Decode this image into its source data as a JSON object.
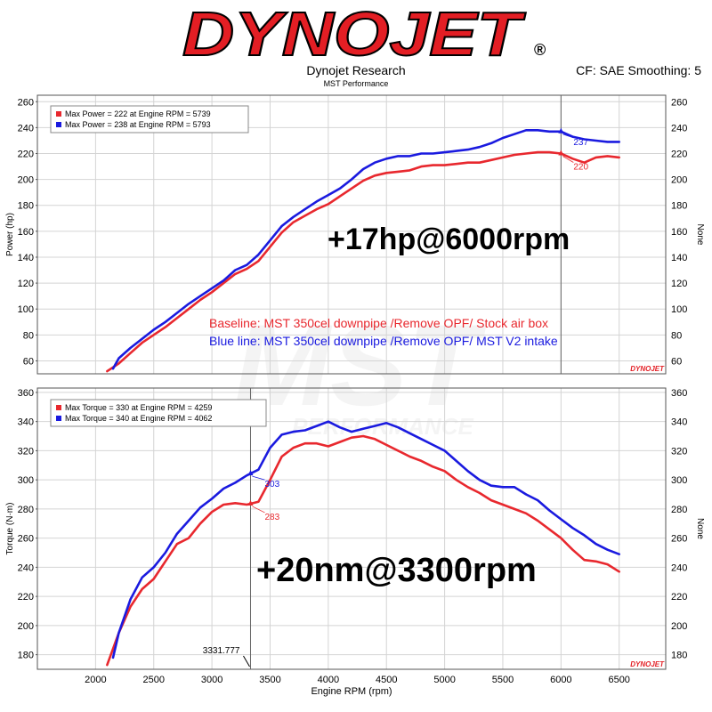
{
  "header": {
    "logo_text": "DYNOJET",
    "logo_mark": "®",
    "company": "Dynojet Research",
    "subtitle": "MST Performance",
    "correction": "CF: SAE Smoothing: 5"
  },
  "watermark": {
    "text": "MST",
    "subtext": "PERFORMANCE"
  },
  "colors": {
    "baseline": "#e8282e",
    "modified": "#1a1adf",
    "grid": "#d0d0d0",
    "logo_red": "#e31e24"
  },
  "chart_data": [
    {
      "type": "line",
      "id": "power",
      "ylabel": "Power (hp)",
      "right_label": "None",
      "xlim": [
        1500,
        6900
      ],
      "ylim": [
        50,
        265
      ],
      "yticks": [
        60,
        80,
        100,
        120,
        140,
        160,
        180,
        200,
        220,
        240,
        260
      ],
      "legend": [
        "Max Power = 222 at Engine RPM = 5739",
        "Max Power = 238 at Engine RPM = 5793"
      ],
      "cursor_rpm": 6000,
      "annotation": "+17hp@6000rpm",
      "notes": [
        "Baseline: MST 350cel downpipe /Remove OPF/ Stock air box",
        "Blue line: MST 350cel downpipe /Remove OPF/ MST V2 intake"
      ],
      "brand_mark": "DYNOJET",
      "series": [
        {
          "legend_index": 0,
          "color": "#e8282e",
          "cursor_label": "220",
          "x": [
            2100,
            2200,
            2300,
            2400,
            2500,
            2600,
            2700,
            2800,
            2900,
            3000,
            3100,
            3200,
            3300,
            3400,
            3500,
            3600,
            3700,
            3800,
            3900,
            4000,
            4100,
            4200,
            4300,
            4400,
            4500,
            4600,
            4700,
            4800,
            4900,
            5000,
            5100,
            5200,
            5300,
            5400,
            5500,
            5600,
            5700,
            5800,
            5900,
            6000,
            6100,
            6200,
            6300,
            6400,
            6500
          ],
          "y": [
            52,
            58,
            66,
            74,
            80,
            86,
            93,
            100,
            107,
            113,
            120,
            127,
            131,
            137,
            148,
            159,
            167,
            172,
            177,
            181,
            187,
            193,
            199,
            203,
            205,
            206,
            207,
            210,
            211,
            211,
            212,
            213,
            213,
            215,
            217,
            219,
            220,
            221,
            221,
            220,
            216,
            213,
            217,
            218,
            217
          ]
        },
        {
          "legend_index": 1,
          "color": "#1a1adf",
          "cursor_label": "237",
          "x": [
            2150,
            2200,
            2300,
            2400,
            2500,
            2600,
            2700,
            2800,
            2900,
            3000,
            3100,
            3200,
            3300,
            3400,
            3500,
            3600,
            3700,
            3800,
            3900,
            4000,
            4100,
            4200,
            4300,
            4400,
            4500,
            4600,
            4700,
            4800,
            4900,
            5000,
            5100,
            5200,
            5300,
            5400,
            5500,
            5600,
            5700,
            5800,
            5900,
            6000,
            6100,
            6200,
            6300,
            6400,
            6500
          ],
          "y": [
            54,
            62,
            70,
            77,
            84,
            90,
            97,
            104,
            110,
            116,
            122,
            130,
            134,
            142,
            153,
            164,
            171,
            177,
            183,
            188,
            193,
            200,
            208,
            213,
            216,
            218,
            218,
            220,
            220,
            221,
            222,
            223,
            225,
            228,
            232,
            235,
            238,
            238,
            237,
            237,
            233,
            231,
            230,
            229,
            229
          ]
        }
      ]
    },
    {
      "type": "line",
      "id": "torque",
      "ylabel": "Torque (N·m)",
      "right_label": "None",
      "xlabel": "Engine RPM (rpm)",
      "xlim": [
        1500,
        6900
      ],
      "ylim": [
        170,
        363
      ],
      "yticks": [
        180,
        200,
        220,
        240,
        260,
        280,
        300,
        320,
        340,
        360
      ],
      "xticks": [
        2000,
        2500,
        3000,
        3500,
        4000,
        4500,
        5000,
        5500,
        6000,
        6500
      ],
      "legend": [
        "Max Torque = 330 at Engine RPM = 4259",
        "Max Torque = 340 at Engine RPM = 4062"
      ],
      "cursor_rpm": 3331.777,
      "cursor_readout": "3331.777",
      "annotation": "+20nm@3300rpm",
      "brand_mark": "DYNOJET",
      "series": [
        {
          "legend_index": 0,
          "color": "#e8282e",
          "cursor_label": "283",
          "x": [
            2100,
            2200,
            2300,
            2400,
            2500,
            2600,
            2700,
            2800,
            2900,
            3000,
            3100,
            3200,
            3300,
            3400,
            3500,
            3600,
            3700,
            3800,
            3900,
            4000,
            4100,
            4200,
            4300,
            4400,
            4500,
            4600,
            4700,
            4800,
            4900,
            5000,
            5100,
            5200,
            5300,
            5400,
            5500,
            5600,
            5700,
            5800,
            5900,
            6000,
            6100,
            6200,
            6300,
            6400,
            6500
          ],
          "y": [
            173,
            195,
            213,
            225,
            232,
            244,
            256,
            260,
            270,
            278,
            283,
            284,
            283,
            285,
            300,
            316,
            322,
            325,
            325,
            323,
            326,
            329,
            330,
            328,
            324,
            320,
            316,
            313,
            309,
            306,
            300,
            295,
            291,
            286,
            283,
            280,
            277,
            272,
            266,
            260,
            252,
            245,
            244,
            242,
            237
          ]
        },
        {
          "legend_index": 1,
          "color": "#1a1adf",
          "cursor_label": "303",
          "x": [
            2150,
            2200,
            2300,
            2400,
            2500,
            2600,
            2700,
            2800,
            2900,
            3000,
            3100,
            3200,
            3300,
            3400,
            3500,
            3600,
            3700,
            3800,
            3900,
            4000,
            4100,
            4200,
            4300,
            4400,
            4500,
            4600,
            4700,
            4800,
            4900,
            5000,
            5100,
            5200,
            5300,
            5400,
            5500,
            5600,
            5700,
            5800,
            5900,
            6000,
            6100,
            6200,
            6300,
            6400,
            6500
          ],
          "y": [
            178,
            195,
            218,
            233,
            240,
            250,
            263,
            272,
            281,
            287,
            294,
            298,
            303,
            307,
            322,
            331,
            333,
            334,
            337,
            340,
            336,
            333,
            335,
            337,
            339,
            336,
            332,
            328,
            324,
            320,
            313,
            306,
            300,
            296,
            295,
            295,
            290,
            286,
            279,
            273,
            267,
            262,
            256,
            252,
            249
          ]
        }
      ]
    }
  ]
}
